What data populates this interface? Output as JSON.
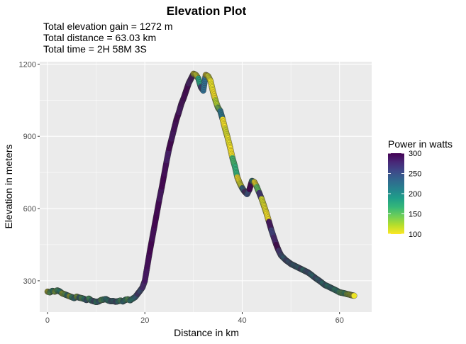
{
  "chart_data": {
    "type": "scatter",
    "title": "Elevation Plot",
    "subtitle_lines": [
      "Total elevation gain = 1272 m",
      "Total distance = 63.03 km",
      "Total time = 2H 58M 3S"
    ],
    "xlabel": "Distance in km",
    "ylabel": "Elevation in meters",
    "xlim": [
      -1.6,
      66.6
    ],
    "ylim": [
      170,
      1210
    ],
    "x_ticks": [
      0,
      20,
      40,
      60
    ],
    "y_ticks": [
      300,
      600,
      900,
      1200
    ],
    "grid": true,
    "legend": {
      "title": "Power in watts",
      "placement": "right",
      "ticks": [
        100,
        150,
        200,
        250,
        300
      ],
      "range": [
        100,
        300
      ]
    },
    "colors": {
      "panel_bg": "#ebebeb",
      "grid": "#ffffff",
      "viridis": [
        "#fde725",
        "#b5de2b",
        "#6ece58",
        "#35b779",
        "#1f9e89",
        "#26828e",
        "#31688e",
        "#3e4989",
        "#482878",
        "#440154"
      ]
    },
    "series": [
      {
        "x": [
          0,
          0.5,
          1,
          1.5,
          2,
          2.5,
          3,
          3.5,
          4,
          4.5,
          5,
          5.5,
          6,
          6.5,
          7,
          7.5,
          8,
          8.5,
          9,
          9.5,
          10,
          10.5,
          11,
          11.5,
          12,
          12.5,
          13,
          13.5,
          14,
          14.5,
          15,
          15.5,
          16,
          16.5,
          17,
          17.5,
          18,
          18.5,
          19,
          19.5,
          20,
          20.5,
          21,
          21.5,
          22,
          22.5,
          23,
          23.5,
          24,
          24.5,
          25,
          25.5,
          26,
          26.5,
          27,
          27.5,
          28,
          28.5,
          29,
          29.5,
          30,
          30.5,
          31,
          31.5,
          32,
          32.5,
          33,
          33.5,
          34,
          34.5,
          35,
          35.5,
          36,
          36.5,
          37,
          37.5,
          38,
          38.5,
          39,
          39.5,
          40,
          40.5,
          41,
          41.5,
          42,
          42.5,
          43,
          43.5,
          44,
          44.5,
          45,
          45.5,
          46,
          46.5,
          47,
          47.5,
          48,
          48.5,
          49,
          49.5,
          50,
          50.5,
          51,
          51.5,
          52,
          52.5,
          53,
          53.5,
          54,
          54.5,
          55,
          55.5,
          56,
          56.5,
          57,
          57.5,
          58,
          58.5,
          59,
          59.5,
          60,
          60.5,
          61,
          61.5,
          62,
          62.5,
          63
        ],
        "y": [
          255,
          252,
          258,
          255,
          260,
          256,
          248,
          244,
          240,
          236,
          232,
          228,
          234,
          230,
          228,
          225,
          220,
          226,
          218,
          215,
          212,
          214,
          220,
          222,
          224,
          218,
          215,
          216,
          213,
          215,
          218,
          214,
          221,
          223,
          219,
          226,
          232,
          245,
          258,
          272,
          300,
          360,
          420,
          475,
          530,
          585,
          640,
          690,
          745,
          800,
          850,
          890,
          930,
          970,
          1000,
          1035,
          1060,
          1090,
          1120,
          1140,
          1160,
          1155,
          1140,
          1105,
          1090,
          1155,
          1150,
          1130,
          1085,
          1050,
          1020,
          1005,
          970,
          930,
          895,
          855,
          810,
          775,
          730,
          705,
          685,
          670,
          660,
          680,
          715,
          710,
          690,
          665,
          640,
          610,
          580,
          545,
          510,
          480,
          450,
          425,
          405,
          395,
          385,
          378,
          370,
          365,
          360,
          355,
          350,
          345,
          340,
          335,
          328,
          320,
          312,
          305,
          298,
          290,
          282,
          278,
          273,
          268,
          263,
          258,
          252,
          250,
          248,
          245,
          243,
          240,
          238
        ],
        "power": [
          110,
          150,
          180,
          130,
          160,
          190,
          120,
          140,
          200,
          115,
          170,
          210,
          130,
          220,
          150,
          190,
          240,
          160,
          200,
          250,
          180,
          230,
          150,
          170,
          210,
          190,
          240,
          220,
          250,
          200,
          160,
          220,
          180,
          150,
          200,
          190,
          230,
          270,
          250,
          280,
          290,
          295,
          300,
          295,
          300,
          298,
          290,
          300,
          295,
          285,
          300,
          290,
          295,
          300,
          290,
          295,
          298,
          300,
          285,
          290,
          105,
          110,
          180,
          260,
          230,
          100,
          110,
          105,
          100,
          120,
          140,
          220,
          100,
          110,
          105,
          100,
          160,
          170,
          100,
          110,
          230,
          280,
          250,
          300,
          200,
          100,
          150,
          270,
          110,
          105,
          100,
          290,
          260,
          280,
          300,
          270,
          250,
          230,
          260,
          240,
          250,
          230,
          240,
          220,
          260,
          200,
          240,
          250,
          230,
          210,
          250,
          220,
          240,
          200,
          230,
          190,
          210,
          220,
          180,
          200,
          160,
          150,
          170,
          130,
          120,
          110,
          105
        ]
      }
    ]
  }
}
